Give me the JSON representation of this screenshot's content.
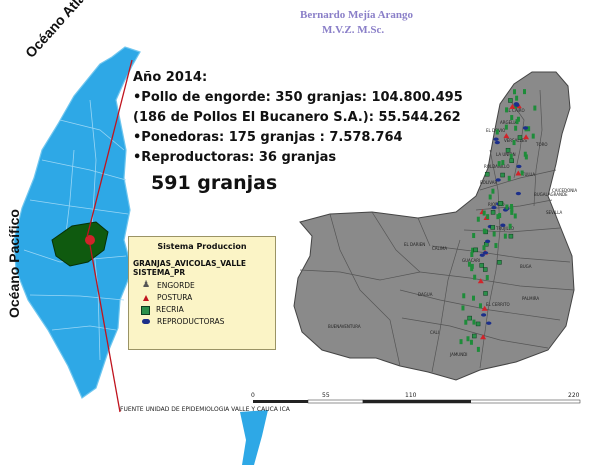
{
  "author": {
    "name": "Bernardo Mejía Arango",
    "credentials": "M.V.Z.   M.Sc."
  },
  "oceans": {
    "atlantic": "Océano Atlántico",
    "pacific": "Océano Pacífico"
  },
  "stats": {
    "year": "Año 2014:",
    "lines": [
      "•Pollo de engorde: 350 granjas: 104.800.495",
      "(186 de Pollos El Bucanero S.A.): 55.544.262",
      "•Ponedoras: 175 granjas : 7.578.764",
      "•Reproductoras: 36 granjas"
    ],
    "total": "591 granjas"
  },
  "legend": {
    "title": "Sistema Produccion",
    "layer": "GRANJAS_AVICOLAS_VALLE",
    "field": "SISTEMA_PR",
    "items": [
      "ENGORDE",
      "POSTURA",
      "RECRIA",
      "REPRODUCTORAS"
    ]
  },
  "source": "FUENTE UNIDAD DE EPIDEMIOLOGIA VALLE Y CAUCA ICA",
  "scale": {
    "ticks": [
      "0",
      "55",
      "110",
      "220"
    ]
  },
  "municipalities": [
    "EL CAIRO",
    "ARGELIA",
    "EL DOVIO",
    "VERSALLES",
    "TORO",
    "LA UNION",
    "ROLDANILLO",
    "BOLIVAR",
    "TULUA",
    "BUGALAGRANDE",
    "SEVILLA",
    "CAICEDONIA",
    "RIOFRIO",
    "TRUJILLO",
    "GUACARI",
    "BUGA",
    "CALIMA",
    "DAGUA",
    "PALMIRA",
    "EL CERRITO",
    "CALI",
    "BUENAVENTURA",
    "JAMUNDI",
    "EL DARIEN"
  ],
  "colors": {
    "colombia": "#2ea8e6",
    "valle": "#0f5a0f",
    "valle_map": "#8a8a8a",
    "farm": "#1e8c3a",
    "red": "#d2232a",
    "author": "#8a7fc8"
  }
}
